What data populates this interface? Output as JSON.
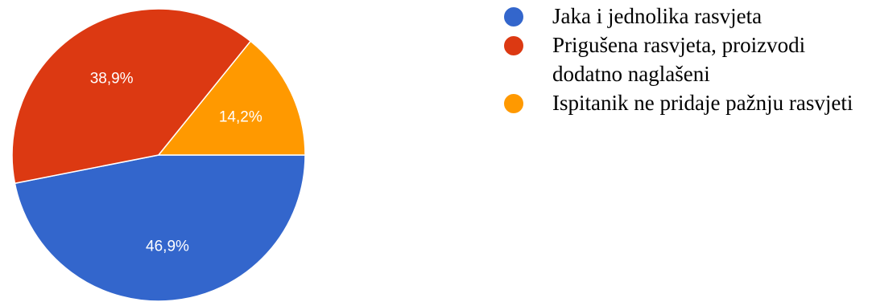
{
  "chart_data": {
    "type": "pie",
    "slices": [
      {
        "label": "Jaka i jednolika rasvjeta",
        "value": 46.9,
        "display": "46,9%",
        "color": "#3366cc"
      },
      {
        "label": "Prigušena rasvjeta, proizvodi dodatno naglašeni",
        "value": 38.9,
        "display": "38,9%",
        "color": "#dc3912"
      },
      {
        "label": "Ispitanik ne pridaje pažnju rasvjeti",
        "value": 14.2,
        "display": "14,2%",
        "color": "#ff9900"
      }
    ],
    "legend_position": "right"
  }
}
